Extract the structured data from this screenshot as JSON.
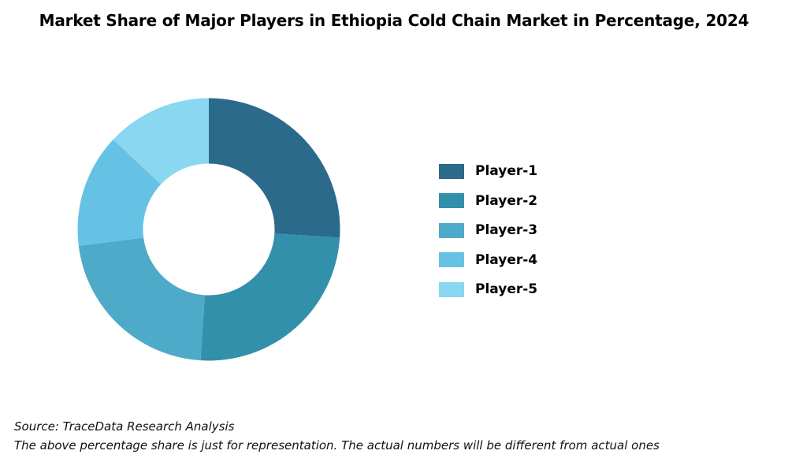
{
  "chart_data": {
    "type": "pie",
    "donut": true,
    "title": "Market Share of Major Players in Ethiopia Cold Chain Market in Percentage, 2024",
    "categories": [
      "Player-1",
      "Player-2",
      "Player-3",
      "Player-4",
      "Player-5"
    ],
    "values": [
      26,
      25,
      22,
      14,
      13
    ],
    "colors": [
      "#2b6a8a",
      "#3390ab",
      "#4eaac9",
      "#66c2e4",
      "#89d7f1"
    ],
    "legend_position": "right",
    "start_angle": "top, clockwise"
  },
  "footer": {
    "source": "Source: TraceData Research Analysis",
    "note": "The above percentage share is just for representation. The actual numbers will be different from actual ones"
  }
}
